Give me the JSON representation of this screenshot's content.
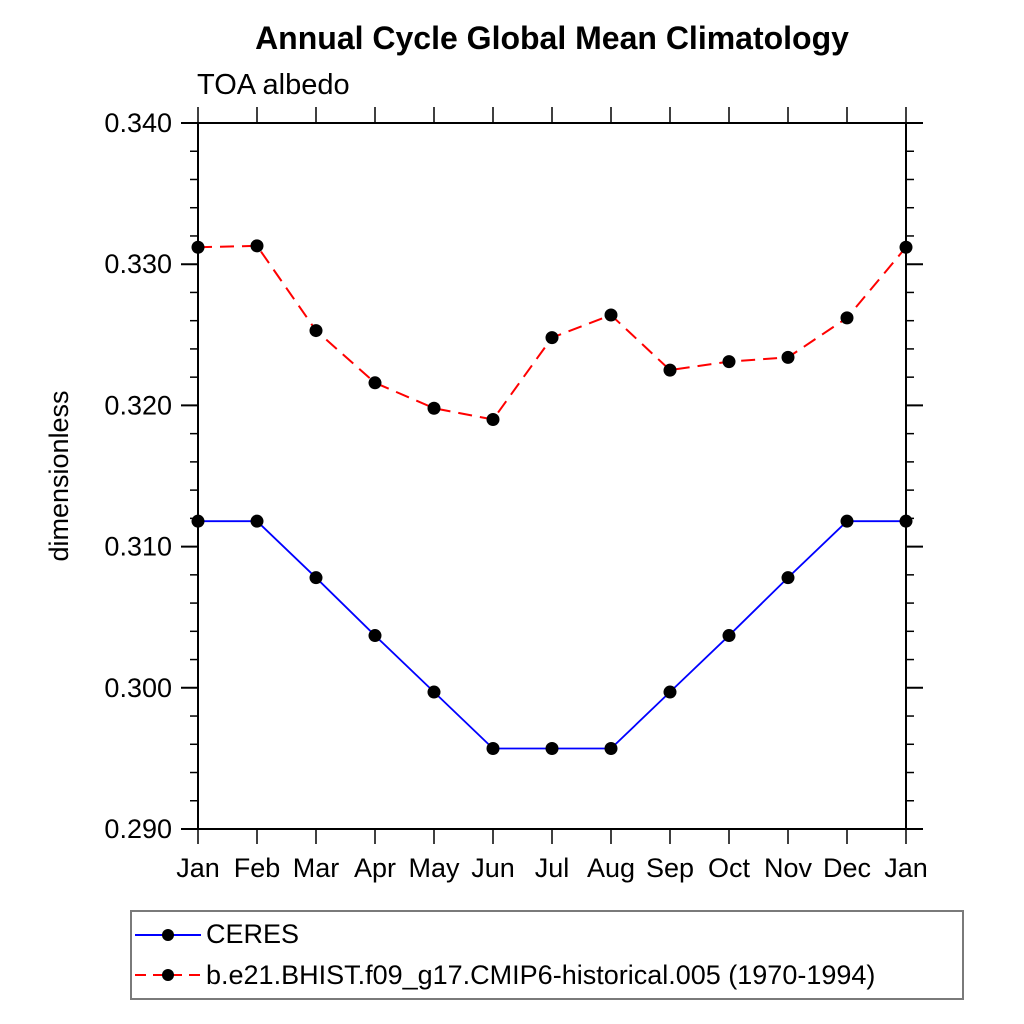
{
  "chart_data": {
    "type": "line",
    "title": "Annual Cycle Global Mean Climatology",
    "subtitle": "TOA albedo",
    "ylabel": "dimensionless",
    "xlabel": "",
    "ylim": [
      0.29,
      0.34
    ],
    "y_tick_labels": [
      "0.290",
      "0.300",
      "0.310",
      "0.320",
      "0.330",
      "0.340"
    ],
    "y_minor_step": 0.002,
    "categories": [
      "Jan",
      "Feb",
      "Mar",
      "Apr",
      "May",
      "Jun",
      "Jul",
      "Aug",
      "Sep",
      "Oct",
      "Nov",
      "Dec",
      "Jan"
    ],
    "grid": false,
    "legend_position": "bottom-left",
    "axis_color": "#000000",
    "marker_color": "#000000",
    "series": [
      {
        "name": "CERES",
        "color": "#0000ff",
        "line_style": "solid",
        "marker": "circle",
        "values": [
          0.3118,
          0.3118,
          0.3078,
          0.3037,
          0.2997,
          0.2957,
          0.2957,
          0.2957,
          0.2997,
          0.3037,
          0.3078,
          0.3118,
          0.3118
        ]
      },
      {
        "name": "b.e21.BHIST.f09_g17.CMIP6-historical.005 (1970-1994)",
        "color": "#ff0000",
        "line_style": "dashed",
        "marker": "circle",
        "values": [
          0.3312,
          0.3313,
          0.3253,
          0.3216,
          0.3198,
          0.319,
          0.3248,
          0.3264,
          0.3225,
          0.3231,
          0.3234,
          0.3262,
          0.3312
        ]
      }
    ]
  }
}
